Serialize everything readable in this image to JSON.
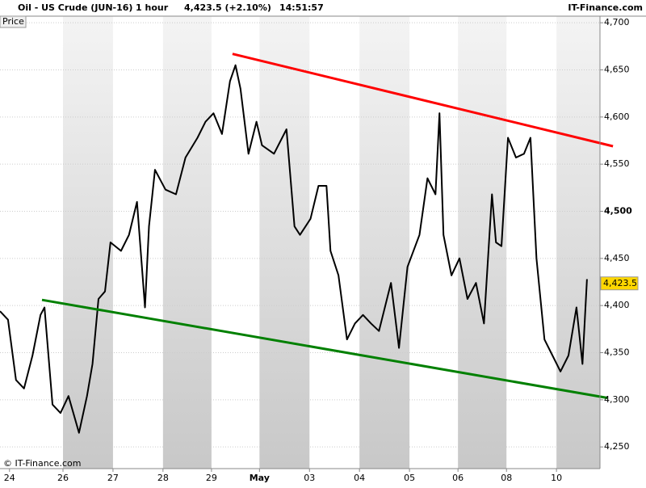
{
  "header": {
    "instrument": "Oil - US Crude (JUN-16)",
    "interval": "1 hour",
    "quote": "4,423.5 (+2.10%)",
    "time": "14:51:57",
    "site": "IT-Finance.com"
  },
  "chart_data": {
    "type": "line",
    "y_axis_label": "Price",
    "watermark": "© IT-Finance.com",
    "xlim": [
      0,
      12
    ],
    "ylim": [
      4227,
      4707
    ],
    "xticks": [
      {
        "value": 0.19,
        "label": "24"
      },
      {
        "value": 1.26,
        "label": "26"
      },
      {
        "value": 2.26,
        "label": "27"
      },
      {
        "value": 3.26,
        "label": "28"
      },
      {
        "value": 4.23,
        "label": "29"
      },
      {
        "value": 5.19,
        "label": "May"
      },
      {
        "value": 6.19,
        "label": "03"
      },
      {
        "value": 7.19,
        "label": "04"
      },
      {
        "value": 8.19,
        "label": "05"
      },
      {
        "value": 9.16,
        "label": "06"
      },
      {
        "value": 10.13,
        "label": "08"
      },
      {
        "value": 11.13,
        "label": "10"
      }
    ],
    "yticks": [
      {
        "value": 4250,
        "label": "4,250"
      },
      {
        "value": 4300,
        "label": "4,300"
      },
      {
        "value": 4350,
        "label": "4,350"
      },
      {
        "value": 4400,
        "label": "4,400"
      },
      {
        "value": 4450,
        "label": "4,450"
      },
      {
        "value": 4500,
        "label": "4,500"
      },
      {
        "value": 4550,
        "label": "4,550"
      },
      {
        "value": 4600,
        "label": "4,600"
      },
      {
        "value": 4650,
        "label": "4,650"
      },
      {
        "value": 4700,
        "label": "4,700"
      }
    ],
    "grid": true,
    "last_price": {
      "value": 4423.5,
      "label": "4,423.5"
    },
    "series": [
      {
        "color": "#000000",
        "width": 2,
        "x": [
          0,
          0.16,
          0.32,
          0.48,
          0.65,
          0.81,
          0.89,
          1.05,
          1.21,
          1.37,
          1.58,
          1.74,
          1.85,
          1.97,
          2.1,
          2.21,
          2.42,
          2.58,
          2.74,
          2.9,
          2.98,
          3.1,
          3.31,
          3.52,
          3.71,
          3.95,
          4.11,
          4.27,
          4.44,
          4.6,
          4.71,
          4.81,
          4.97,
          5.13,
          5.24,
          5.48,
          5.73,
          5.89,
          6.0,
          6.21,
          6.37,
          6.53,
          6.61,
          6.77,
          6.94,
          7.1,
          7.26,
          7.42,
          7.58,
          7.82,
          7.98,
          8.15,
          8.39,
          8.55,
          8.71,
          8.79,
          8.87,
          9.03,
          9.19,
          9.35,
          9.52,
          9.68,
          9.84,
          9.92,
          10.03,
          10.16,
          10.32,
          10.48,
          10.61,
          10.73,
          10.89,
          11.05,
          11.21,
          11.37,
          11.53,
          11.65,
          11.74
        ],
        "values": [
          4394,
          4385,
          4321,
          4312,
          4347,
          4390,
          4398,
          4295,
          4286,
          4304,
          4265,
          4304,
          4338,
          4407,
          4415,
          4467,
          4458,
          4475,
          4510,
          4398,
          4484,
          4544,
          4523,
          4518,
          4557,
          4578,
          4595,
          4604,
          4582,
          4638,
          4655,
          4630,
          4561,
          4595,
          4570,
          4561,
          4587,
          4484,
          4475,
          4492,
          4527,
          4527,
          4458,
          4432,
          4364,
          4381,
          4390,
          4381,
          4373,
          4424,
          4355,
          4441,
          4475,
          4535,
          4518,
          4604,
          4475,
          4432,
          4450,
          4407,
          4424,
          4381,
          4518,
          4467,
          4463,
          4578,
          4557,
          4561,
          4578,
          4450,
          4364,
          4347,
          4330,
          4347,
          4398,
          4338,
          4428
        ]
      },
      {
        "color": "#ff0000",
        "width": 3,
        "x": [
          4.65,
          12.26
        ],
        "values": [
          4667,
          4569
        ]
      },
      {
        "color": "#008000",
        "width": 3,
        "x": [
          0.84,
          12.15
        ],
        "values": [
          4406,
          4302
        ]
      }
    ]
  }
}
